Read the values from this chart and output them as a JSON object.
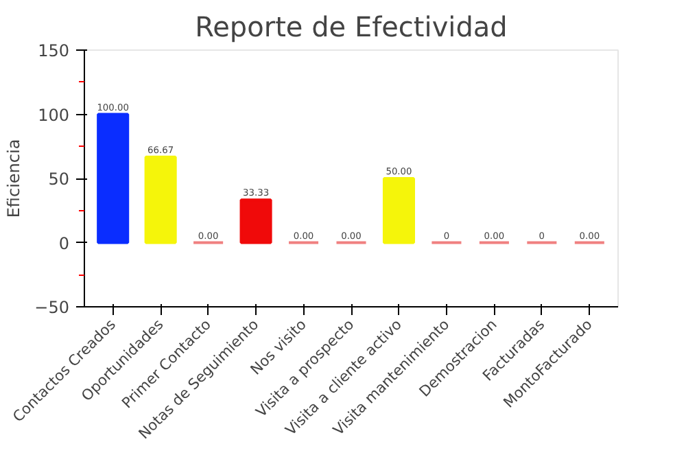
{
  "chart_data": {
    "type": "bar",
    "title": "Reporte de Efectividad",
    "ylabel": "Eficiencia",
    "categories": [
      "Contactos Creados",
      "Oportunidades",
      "Primer Contacto",
      "Notas de Seguimiento",
      "Nos visito",
      "Visita a prospecto",
      "Visita a cliente activo",
      "Visita mantenimiento",
      "Demostracion",
      "Facturadas",
      "MontoFacturado"
    ],
    "values": [
      100,
      66.67,
      0,
      33.33,
      0,
      0,
      50,
      0,
      0,
      0,
      0
    ],
    "colors": [
      "#0a2dff",
      "#f5f50a",
      "#f08080",
      "#f00a0a",
      "#f08080",
      "#f08080",
      "#f5f50a",
      "#f08080",
      "#f08080",
      "#f08080",
      "#f08080"
    ],
    "value_labels": [
      "100.00",
      "66.67",
      "0.00",
      "33.33",
      "0.00",
      "0.00",
      "50.00",
      "0",
      "0.00",
      "0",
      "0.00"
    ],
    "ylim": [
      -50,
      150
    ],
    "yticks": [
      -50,
      0,
      50,
      100,
      150
    ],
    "grid": false
  }
}
